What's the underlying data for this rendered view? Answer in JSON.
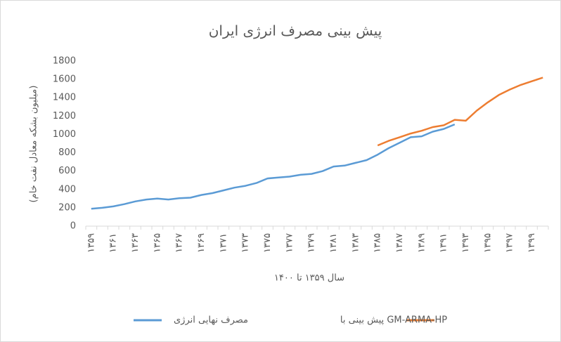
{
  "chart_data": {
    "type": "line",
    "title": "پیش بینی مصرف انرژی ایران",
    "y_label": "(میلیون بشکه معادل نفت خام)",
    "x_label": "سال ۱۳۵۹ تا ۱۴۰۰",
    "categories": [
      "۱۳۵۹",
      null,
      "۱۳۶۱",
      null,
      "۱۳۶۳",
      null,
      "۱۳۶۵",
      null,
      "۱۳۶۷",
      null,
      "۱۳۶۹",
      null,
      "۱۳۷۱",
      null,
      "۱۳۷۳",
      null,
      "۱۳۷۵",
      null,
      "۱۳۷۷",
      null,
      "۱۳۷۹",
      null,
      "۱۳۸۱",
      null,
      "۱۳۸۳",
      null,
      "۱۳۸۵",
      null,
      "۱۳۸۷",
      null,
      "۱۳۸۹",
      null,
      "۱۳۹۱",
      null,
      "۱۳۹۳",
      null,
      "۱۳۹۵",
      null,
      "۱۳۹۷",
      null,
      "۱۳۹۹",
      null
    ],
    "series": [
      {
        "name": "مصرف نهایی انرژی",
        "color": "#5b9bd5",
        "values": [
          190,
          200,
          215,
          240,
          270,
          290,
          300,
          290,
          305,
          310,
          340,
          360,
          390,
          420,
          440,
          470,
          520,
          530,
          540,
          560,
          570,
          600,
          650,
          660,
          690,
          720,
          780,
          850,
          910,
          970,
          980,
          1030,
          1060,
          1110,
          null,
          null,
          null,
          null,
          null,
          null,
          null,
          null
        ]
      },
      {
        "name": "پیش بینی با GM-ARMA-HP",
        "color": "#ed7d31",
        "values": [
          null,
          null,
          null,
          null,
          null,
          null,
          null,
          null,
          null,
          null,
          null,
          null,
          null,
          null,
          null,
          null,
          null,
          null,
          null,
          null,
          null,
          null,
          null,
          null,
          null,
          null,
          880,
          930,
          970,
          1010,
          1040,
          1080,
          1100,
          1160,
          1150,
          1260,
          1350,
          1430,
          1490,
          1540,
          1580,
          1620
        ]
      }
    ],
    "ylim": [
      0,
      1800
    ],
    "yticks": [
      0,
      200,
      400,
      600,
      800,
      1000,
      1200,
      1400,
      1600,
      1800
    ]
  }
}
